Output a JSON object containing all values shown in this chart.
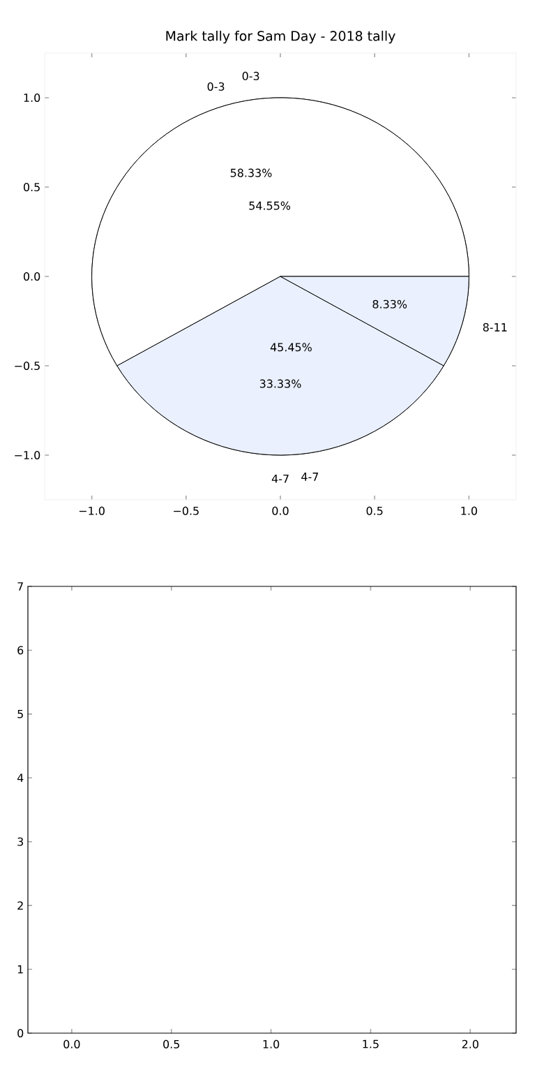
{
  "chart_data": [
    {
      "type": "scatter",
      "title": "Mark tally for Sam Day - 2018 tally",
      "xlim": [
        -1.25,
        1.25
      ],
      "ylim": [
        -1.25,
        1.25
      ],
      "xticks": [
        {
          "value": -1,
          "label": "−1.0"
        },
        {
          "value": -0.5,
          "label": "−0.5"
        },
        {
          "value": 0,
          "label": "0.0"
        },
        {
          "value": 0.5,
          "label": "0.5"
        },
        {
          "value": 1,
          "label": "1.0"
        }
      ],
      "yticks": [
        {
          "value": -1,
          "label": "−1.0"
        },
        {
          "value": -0.5,
          "label": "−0.5"
        },
        {
          "value": 0,
          "label": "0.0"
        },
        {
          "value": 0.5,
          "label": "0.5"
        },
        {
          "value": 1,
          "label": "1.0"
        }
      ]
    },
    {
      "type": "pie",
      "categories": [
        "0-3",
        "4-7",
        "8-11"
      ],
      "values": [
        58.33,
        33.33,
        8.33
      ],
      "colors": [
        "#ffffff",
        "#eaf0fd",
        "#eaf0fd"
      ],
      "value_labels": [
        "58.33%",
        "33.33%",
        "8.33%"
      ]
    },
    {
      "type": "pie",
      "categories": [
        "0-3",
        "4-7"
      ],
      "values": [
        54.55,
        45.45
      ],
      "colors": [
        "#ffffff",
        "#eaf0fd"
      ],
      "value_labels": [
        "54.55%",
        "45.45%"
      ]
    },
    {
      "type": "scatter",
      "xlim": [
        -0.22,
        2.23
      ],
      "ylim": [
        0,
        7
      ],
      "xticks": [
        {
          "value": 0,
          "label": "0.0"
        },
        {
          "value": 0.5,
          "label": "0.5"
        },
        {
          "value": 1,
          "label": "1.0"
        },
        {
          "value": 1.5,
          "label": "1.5"
        },
        {
          "value": 2,
          "label": "2.0"
        }
      ],
      "yticks": [
        0,
        1,
        2,
        3,
        4,
        5,
        6,
        7
      ]
    }
  ]
}
